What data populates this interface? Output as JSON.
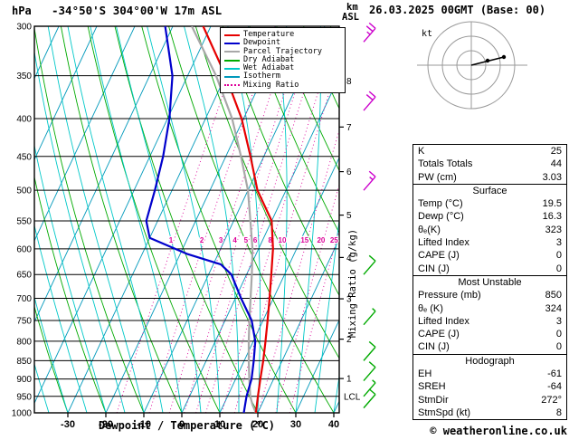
{
  "title": {
    "pressure_unit": "hPa",
    "location": "-34°50'S 304°00'W 17m ASL",
    "altitude_unit": "km",
    "altitude_unit2": "ASL",
    "datetime": "26.03.2025 00GMT (Base: 00)"
  },
  "axes": {
    "pressure_ticks": [
      300,
      350,
      400,
      450,
      500,
      550,
      600,
      650,
      700,
      750,
      800,
      850,
      900,
      950,
      1000
    ],
    "temp_ticks": [
      -30,
      -20,
      -10,
      0,
      10,
      20,
      30,
      40
    ],
    "km_ticks": [
      1,
      2,
      3,
      4,
      5,
      6,
      7,
      8
    ],
    "x_label": "Dewpoint / Temperature (°C)",
    "right_label": "Mixing Ratio (g/kg)",
    "lcl_label": "LCL"
  },
  "legend": [
    {
      "label": "Temperature",
      "color": "#e60000",
      "style": "solid"
    },
    {
      "label": "Dewpoint",
      "color": "#0000cc",
      "style": "solid"
    },
    {
      "label": "Parcel Trajectory",
      "color": "#a8a8a8",
      "style": "solid"
    },
    {
      "label": "Dry Adiabat",
      "color": "#00aa00",
      "style": "solid"
    },
    {
      "label": "Wet Adiabat",
      "color": "#00c8c8",
      "style": "solid"
    },
    {
      "label": "Isotherm",
      "color": "#0099bb",
      "style": "solid"
    },
    {
      "label": "Mixing Ratio",
      "color": "#dd0099",
      "style": "dotted"
    }
  ],
  "colors": {
    "temperature": "#e60000",
    "dewpoint": "#0000cc",
    "parcel": "#a8a8a8",
    "dry_adiabat": "#00aa00",
    "wet_adiabat": "#00c8c8",
    "isotherm": "#0099bb",
    "mixing_ratio": "#dd0099",
    "grid": "#000000"
  },
  "chart_data": {
    "type": "line",
    "variant": "skew-t-log-p",
    "pressure_axis": {
      "unit": "hPa",
      "scale": "log",
      "ticks": [
        300,
        350,
        400,
        450,
        500,
        550,
        600,
        650,
        700,
        750,
        800,
        850,
        900,
        950,
        1000
      ]
    },
    "temperature_axis": {
      "unit": "°C",
      "ticks": [
        -30,
        -20,
        -10,
        0,
        10,
        20,
        30,
        40
      ]
    },
    "altitude_axis_km": [
      1,
      2,
      3,
      4,
      5,
      6,
      7,
      8
    ],
    "series": [
      {
        "name": "Temperature",
        "color": "#e60000",
        "points": [
          [
            1000,
            19.5
          ],
          [
            950,
            18.0
          ],
          [
            900,
            16.5
          ],
          [
            850,
            15.0
          ],
          [
            800,
            13.2
          ],
          [
            750,
            11.2
          ],
          [
            700,
            9.0
          ],
          [
            650,
            6.5
          ],
          [
            600,
            3.8
          ],
          [
            550,
            0.0
          ],
          [
            500,
            -7.5
          ],
          [
            450,
            -13.5
          ],
          [
            400,
            -20.5
          ],
          [
            350,
            -30.0
          ],
          [
            300,
            -42.0
          ]
        ]
      },
      {
        "name": "Dewpoint",
        "color": "#0000cc",
        "points": [
          [
            1000,
            16.3
          ],
          [
            950,
            15.0
          ],
          [
            900,
            14.2
          ],
          [
            850,
            12.5
          ],
          [
            800,
            10.5
          ],
          [
            750,
            7.0
          ],
          [
            700,
            1.5
          ],
          [
            650,
            -4.0
          ],
          [
            630,
            -8.0
          ],
          [
            610,
            -18.0
          ],
          [
            580,
            -30.0
          ],
          [
            550,
            -33.0
          ],
          [
            500,
            -34.5
          ],
          [
            450,
            -36.5
          ],
          [
            400,
            -39.5
          ],
          [
            350,
            -44.0
          ],
          [
            300,
            -52.0
          ]
        ]
      },
      {
        "name": "Parcel Trajectory",
        "color": "#a8a8a8",
        "points": [
          [
            1000,
            19.5
          ],
          [
            975,
            17.6
          ],
          [
            950,
            16.0
          ],
          [
            900,
            13.6
          ],
          [
            850,
            11.2
          ],
          [
            800,
            8.8
          ],
          [
            750,
            6.4
          ],
          [
            700,
            4.0
          ],
          [
            650,
            1.4
          ],
          [
            600,
            -1.6
          ],
          [
            550,
            -5.6
          ],
          [
            500,
            -10.0
          ],
          [
            450,
            -16.0
          ],
          [
            400,
            -23.0
          ],
          [
            350,
            -32.5
          ],
          [
            300,
            -45.0
          ]
        ]
      }
    ],
    "mixing_ratio_lines_g_kg": [
      1,
      2,
      3,
      4,
      5,
      6,
      8,
      10,
      15,
      20,
      25
    ],
    "wind_barbs": [
      {
        "pressure": 315,
        "speed_kt": 25,
        "color": "#cc00cc"
      },
      {
        "pressure": 390,
        "speed_kt": 20,
        "color": "#cc00cc"
      },
      {
        "pressure": 500,
        "speed_kt": 15,
        "color": "#cc00cc"
      },
      {
        "pressure": 650,
        "speed_kt": 10,
        "color": "#00aa00"
      },
      {
        "pressure": 760,
        "speed_kt": 5,
        "color": "#00aa00"
      },
      {
        "pressure": 850,
        "speed_kt": 10,
        "color": "#00aa00"
      },
      {
        "pressure": 905,
        "speed_kt": 10,
        "color": "#00aa00"
      },
      {
        "pressure": 950,
        "speed_kt": 5,
        "color": "#00aa00"
      },
      {
        "pressure": 985,
        "speed_kt": 10,
        "color": "#00aa00"
      }
    ]
  },
  "hodograph": {
    "unit_label": "kt",
    "vector": [
      36,
      -9
    ],
    "dots": [
      [
        18,
        -5
      ],
      [
        36,
        -9
      ]
    ]
  },
  "panels": [
    {
      "rows": [
        [
          "K",
          "25"
        ],
        [
          "Totals Totals",
          "44"
        ],
        [
          "PW (cm)",
          "3.03"
        ]
      ]
    },
    {
      "header": "Surface",
      "rows": [
        [
          "Temp (°C)",
          "19.5"
        ],
        [
          "Dewp (°C)",
          "16.3"
        ],
        [
          "θₑ(K)",
          "323"
        ],
        [
          "Lifted Index",
          "3"
        ],
        [
          "CAPE (J)",
          "0"
        ],
        [
          "CIN (J)",
          "0"
        ]
      ]
    },
    {
      "header": "Most Unstable",
      "rows": [
        [
          "Pressure (mb)",
          "850"
        ],
        [
          "θₑ (K)",
          "324"
        ],
        [
          "Lifted Index",
          "3"
        ],
        [
          "CAPE (J)",
          "0"
        ],
        [
          "CIN (J)",
          "0"
        ]
      ]
    },
    {
      "header": "Hodograph",
      "rows": [
        [
          "EH",
          "-61"
        ],
        [
          "SREH",
          "-64"
        ],
        [
          "StmDir",
          "272°"
        ],
        [
          "StmSpd (kt)",
          "8"
        ]
      ]
    }
  ],
  "copyright": "© weatheronline.co.uk"
}
